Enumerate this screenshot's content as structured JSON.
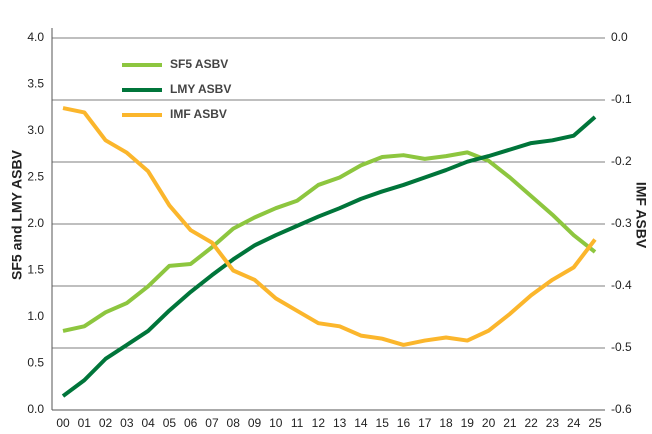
{
  "chart_data": {
    "type": "line",
    "y_label": "SF5 and LMY ASBV",
    "y2_label": "IMF ASBV",
    "categories": [
      "00",
      "01",
      "02",
      "03",
      "04",
      "05",
      "06",
      "07",
      "08",
      "09",
      "10",
      "11",
      "12",
      "13",
      "14",
      "15",
      "16",
      "17",
      "18",
      "19",
      "20",
      "21",
      "22",
      "23",
      "24",
      "25"
    ],
    "ylim": [
      0,
      4
    ],
    "yticks": [
      {
        "value": 0,
        "label": "0.0"
      },
      {
        "value": 0.5,
        "label": "0.5"
      },
      {
        "value": 1,
        "label": "1.0"
      },
      {
        "value": 1.5,
        "label": "1.5"
      },
      {
        "value": 2,
        "label": "2.0"
      },
      {
        "value": 2.5,
        "label": "2.5"
      },
      {
        "value": 3,
        "label": "3.0"
      },
      {
        "value": 3.5,
        "label": "3.5"
      },
      {
        "value": 4,
        "label": "4.0"
      }
    ],
    "y2lim": [
      -0.6,
      0
    ],
    "y2ticks": [
      {
        "value": 0,
        "label": "0.0"
      },
      -0.1,
      -0.2,
      -0.3,
      -0.4,
      -0.5,
      -0.6
    ],
    "grid": true,
    "series": [
      {
        "name": "SF5 ASBV",
        "color": "#8dc63f",
        "values": [
          0.85,
          0.9,
          1.05,
          1.15,
          1.33,
          1.55,
          1.57,
          1.75,
          1.95,
          2.07,
          2.17,
          2.25,
          2.42,
          2.5,
          2.63,
          2.72,
          2.74,
          2.7,
          2.73,
          2.77,
          2.68,
          2.5,
          2.3,
          2.1,
          1.88,
          1.7
        ]
      },
      {
        "name": "LMY ASBV",
        "color": "#00753a",
        "values": [
          0.15,
          0.32,
          0.55,
          0.7,
          0.85,
          1.07,
          1.27,
          1.45,
          1.62,
          1.77,
          1.88,
          1.98,
          2.08,
          2.17,
          2.27,
          2.35,
          2.42,
          2.5,
          2.58,
          2.67,
          2.73,
          2.8,
          2.87,
          2.9,
          2.95,
          3.15
        ]
      },
      {
        "name": "IMF ASBV",
        "color": "#fbb62c",
        "axis": "y2",
        "values": [
          -0.113,
          -0.12,
          -0.165,
          -0.185,
          -0.215,
          -0.27,
          -0.31,
          -0.33,
          -0.375,
          -0.39,
          -0.42,
          -0.44,
          -0.46,
          -0.465,
          -0.48,
          -0.485,
          -0.495,
          -0.488,
          -0.483,
          -0.488,
          -0.472,
          -0.445,
          -0.415,
          -0.39,
          -0.37,
          -0.325
        ]
      }
    ]
  }
}
